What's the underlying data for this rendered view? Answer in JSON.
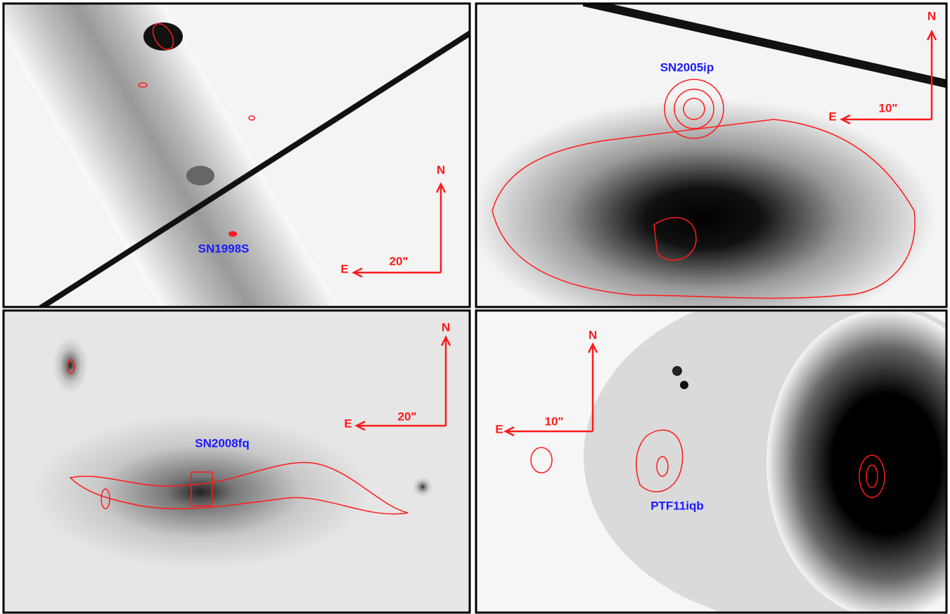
{
  "panels": [
    {
      "label": "SN1998S",
      "scale": "20\"",
      "east": "E",
      "north": "N"
    },
    {
      "label": "SN2005ip",
      "scale": "10\"",
      "east": "E",
      "north": "N"
    },
    {
      "label": "SN2008fq",
      "scale": "20\"",
      "east": "E",
      "north": "N"
    },
    {
      "label": "PTF11iqb",
      "scale": "10\"",
      "east": "E",
      "north": "N"
    }
  ]
}
